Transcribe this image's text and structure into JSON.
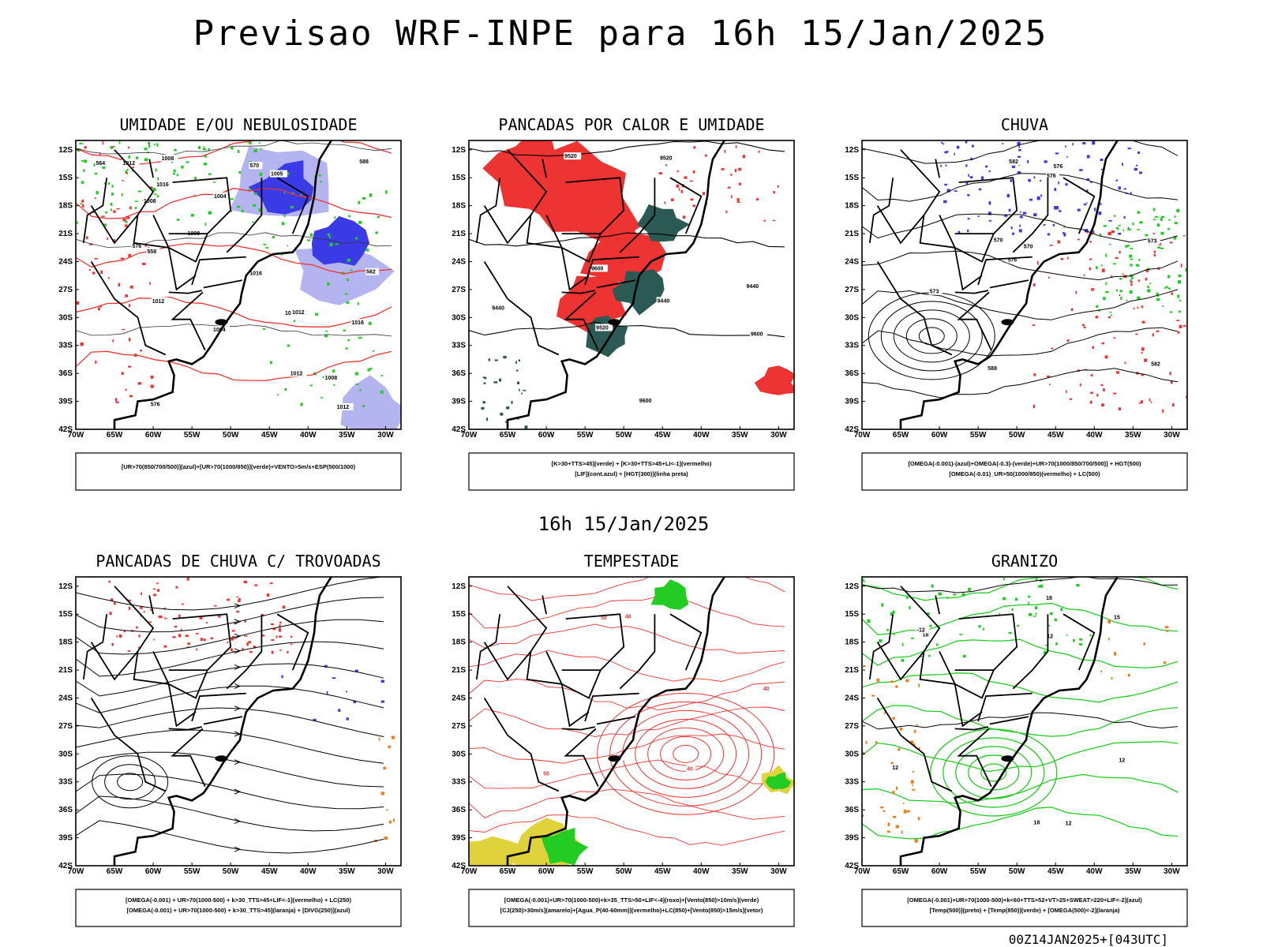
{
  "title": "Previsao WRF-INPE  para 16h 15/Jan/2025",
  "mid_date": "16h 15/Jan/2025",
  "footer_stamp": "00Z14JAN2025+[043UTC]",
  "lat_ticks": [
    "12S",
    "15S",
    "18S",
    "21S",
    "24S",
    "27S",
    "30S",
    "33S",
    "36S",
    "39S",
    "42S"
  ],
  "lon_ticks": [
    "70W",
    "65W",
    "60W",
    "55W",
    "50W",
    "45W",
    "40W",
    "35W",
    "30W"
  ],
  "colors": {
    "blue": "#3a3ae6",
    "light_blue": "#b4b4f0",
    "green": "#22cc22",
    "red": "#ee3333",
    "dark_teal": "#2b5a54",
    "orange": "#f07a1a",
    "yellow": "#e0d23a",
    "black": "#000000"
  },
  "panels": [
    {
      "id": "umidade",
      "title": "UMIDADE E/OU NEBULOSIDADE",
      "legend": [
        "[UR>70(850/700/500)](azul)+[UR>70(1000/850)](verde)+VENTO>5m/s+ESP(500/1000)"
      ],
      "contour_labels": [
        "1008",
        "1008",
        "1012",
        "1005",
        "1012",
        "1004",
        "1004",
        "1012",
        "1012",
        "1016",
        "1016",
        "1012",
        "1008",
        "1008",
        "1016",
        "1012",
        "564",
        "576",
        "576",
        "570",
        "588",
        "582",
        "558"
      ]
    },
    {
      "id": "pancadas-calor",
      "title": "PANCADAS POR CALOR E UMIDADE",
      "legend": [
        "[K>30+TTS>45](verde) + [K>30+TTS>45+LI<-1](vermelho)",
        "[LIF](cont.azul) + [HGT(300)](linha preta)"
      ],
      "contour_labels": [
        "9600",
        "9520",
        "9600",
        "9440",
        "9520",
        "9600",
        "9520",
        "9440",
        "9440"
      ]
    },
    {
      "id": "chuva",
      "title": "CHUVA",
      "legend": [
        "[OMEGA(-0.001)-(azul)+OMEGA(-0.3)-(verde)+UR>70(1000/850/700/500)] + HGT(500)",
        "[OMEGA(-0.01)_UR>50(1000/850)(vermelho) + LC(500)"
      ],
      "contour_labels": [
        "582",
        "588",
        "576",
        "570",
        "576",
        "582",
        "573",
        "573",
        "570",
        "576"
      ]
    },
    {
      "id": "pancadas-trovoadas",
      "title": "PANCADAS DE CHUVA C/ TROVOADAS",
      "legend": [
        "[OMEGA(-0.001) + UR>70(1000-500) + k>30_TTS>45+LIF<-1](vermelho) + LC(250)",
        "[OMEGA(-0.001) + UR>70(1000-500) + k>30_TTS>45](laranja) + [DIVG(250)](azul)"
      ],
      "contour_labels": []
    },
    {
      "id": "tempestade",
      "title": "TEMPESTADE",
      "legend": [
        "[OMEGA(-0.001)+UR>70(1000-500)+k>35_TTS>50+LIF<-4](roxo)+[Vento(850)>10m/s](verde)",
        "[CJ(250)>30m/s](amarelo)+[Agua_P(40-60mm)](vermelho)+LC(850)+[Vento(850)>15m/s](vetor)"
      ],
      "contour_labels": [
        "40",
        "50",
        "40",
        "50",
        "40",
        "50"
      ]
    },
    {
      "id": "granizo",
      "title": "GRANIZO",
      "legend": [
        "[OMEGA(-0.001)+UR>70(1000-500)+k<60+TTS>52+VT>25+SWEAT>220+LIF<-2](azul)",
        "[Temp(500)](preto) + [Temp(850)](verde) + [OMEGA(500)<-2](laranja)"
      ],
      "contour_labels": [
        "12",
        "18",
        "15",
        "12",
        "18",
        "12",
        "-12",
        "12",
        "18"
      ]
    }
  ]
}
